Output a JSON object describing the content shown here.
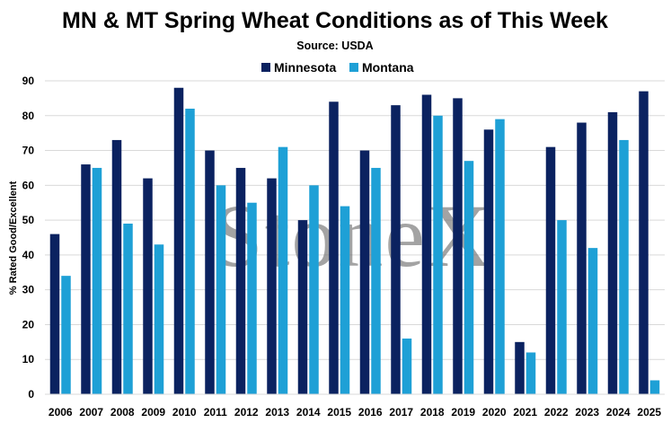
{
  "chart_data": {
    "type": "bar",
    "title": "MN & MT Spring Wheat Conditions as of This Week",
    "subtitle": "Source: USDA",
    "ylabel": "% Rated Good/Excellent",
    "xlabel": "",
    "ylim": [
      0,
      90
    ],
    "yticks": [
      0,
      10,
      20,
      30,
      40,
      50,
      60,
      70,
      80,
      90
    ],
    "grid": "horizontal",
    "legend_position": "top-center",
    "watermark": "StoneX",
    "categories": [
      "2006",
      "2007",
      "2008",
      "2009",
      "2010",
      "2011",
      "2012",
      "2013",
      "2014",
      "2015",
      "2016",
      "2017",
      "2018",
      "2019",
      "2020",
      "2021",
      "2022",
      "2023",
      "2024",
      "2025"
    ],
    "series": [
      {
        "name": "Minnesota",
        "color": "#0b2260",
        "values": [
          46,
          66,
          73,
          62,
          88,
          70,
          65,
          62,
          50,
          84,
          70,
          83,
          86,
          85,
          76,
          15,
          71,
          78,
          81,
          87
        ]
      },
      {
        "name": "Montana",
        "color": "#1ea0d6",
        "values": [
          34,
          65,
          49,
          43,
          82,
          60,
          55,
          71,
          60,
          54,
          65,
          16,
          80,
          67,
          79,
          12,
          50,
          42,
          73,
          4
        ]
      }
    ]
  }
}
